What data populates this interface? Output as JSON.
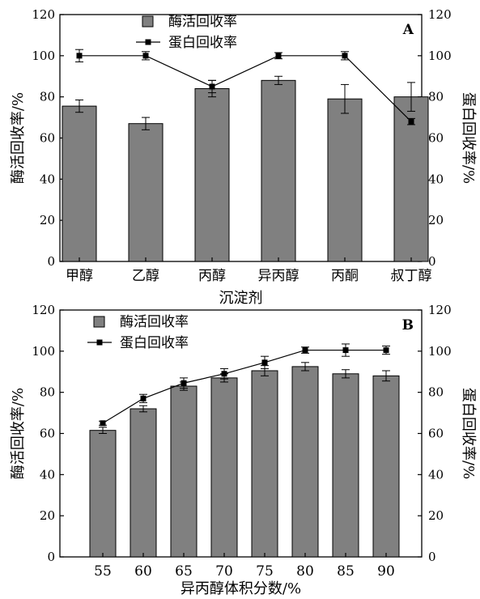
{
  "chart_data": [
    {
      "type": "bar",
      "panel_label": "A",
      "categories": [
        "甲醇",
        "乙醇",
        "丙醇",
        "异丙醇",
        "丙酮",
        "叔丁醇"
      ],
      "xlabel": "沉淀剂",
      "ylabel": "酶活回收率/%",
      "y2label": "蛋白回收率/%",
      "ylim": [
        0,
        120
      ],
      "y2lim": [
        0,
        120
      ],
      "yticks": [
        0,
        20,
        40,
        60,
        80,
        100,
        120
      ],
      "legend_position": "top-center",
      "grid": false,
      "series": [
        {
          "name": "酶活回收率",
          "kind": "bar",
          "axis": "left",
          "values": [
            75.5,
            67,
            84,
            88,
            79,
            80
          ],
          "errors": [
            3,
            3,
            4,
            2,
            7,
            7
          ]
        },
        {
          "name": "蛋白回收率",
          "kind": "line",
          "axis": "right",
          "values": [
            100,
            100,
            85,
            100,
            100,
            68
          ],
          "errors": [
            3,
            2,
            3,
            1.5,
            2,
            1.5
          ]
        }
      ],
      "colors": {
        "bar": "#808080",
        "line": "#000000"
      }
    },
    {
      "type": "bar",
      "panel_label": "B",
      "categories": [
        "55",
        "60",
        "65",
        "70",
        "75",
        "80",
        "85",
        "90"
      ],
      "xlabel": "异丙醇体积分数/%",
      "ylabel": "酶活回收率/%",
      "y2label": "蛋白回收率/%",
      "ylim": [
        0,
        120
      ],
      "y2lim": [
        0,
        120
      ],
      "yticks": [
        0,
        20,
        40,
        60,
        80,
        100,
        120
      ],
      "legend_position": "top-left",
      "grid": false,
      "series": [
        {
          "name": "酶活回收率",
          "kind": "bar",
          "axis": "left",
          "values": [
            61.5,
            72,
            83,
            87,
            90.5,
            92.5,
            89,
            88
          ],
          "errors": [
            1.5,
            1.5,
            2,
            2,
            2.5,
            2,
            2,
            2.5
          ]
        },
        {
          "name": "蛋白回收率",
          "kind": "line",
          "axis": "right",
          "values": [
            65,
            77,
            84.5,
            89,
            94.5,
            100.5,
            100.5,
            100.5
          ],
          "errors": [
            1,
            2,
            2.5,
            2.5,
            3,
            1.5,
            3,
            2
          ]
        }
      ],
      "colors": {
        "bar": "#808080",
        "line": "#000000"
      }
    }
  ]
}
